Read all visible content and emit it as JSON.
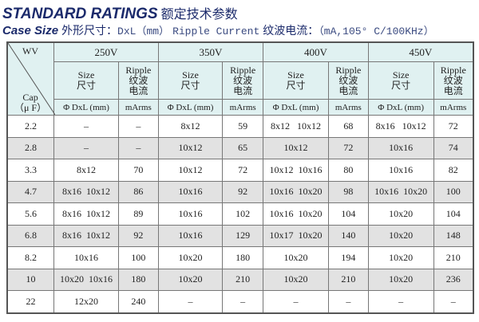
{
  "title": {
    "en": "STANDARD RATINGS",
    "cn": "额定技术参数"
  },
  "subtitle": {
    "case_en": "Case Size",
    "case_cn": "外形尺寸：",
    "case_unit": "DxL（mm）",
    "ripple_en": "Ripple Current",
    "ripple_cn": "纹波电流：",
    "ripple_unit": "（mA,105° C/100KHz）"
  },
  "table": {
    "wv_label": "WV",
    "cap_label": "Cap",
    "cap_unit": "（μ F）",
    "voltages": [
      "250V",
      "350V",
      "400V",
      "450V"
    ],
    "size_en": "Size",
    "size_cn": "尺寸",
    "ripple_en": "Ripple",
    "ripple_cn1": "纹波",
    "ripple_cn2": "电流",
    "size_unit": "Φ DxL (mm)",
    "ripple_unit": "mArms",
    "rows": [
      {
        "cap": "2.2",
        "cells": [
          "–",
          "–",
          "8x12",
          "59",
          "8x12   10x12",
          "68",
          "8x16   10x12",
          "72"
        ]
      },
      {
        "cap": "2.8",
        "cells": [
          "–",
          "–",
          "10x12",
          "65",
          "10x12",
          "72",
          "10x16",
          "74"
        ]
      },
      {
        "cap": "3.3",
        "cells": [
          "8x12",
          "70",
          "10x12",
          "72",
          "10x12  10x16",
          "80",
          "10x16",
          "82"
        ]
      },
      {
        "cap": "4.7",
        "cells": [
          "8x16  10x12",
          "86",
          "10x16",
          "92",
          "10x16  10x20",
          "98",
          "10x16  10x20",
          "100"
        ]
      },
      {
        "cap": "5.6",
        "cells": [
          "8x16  10x12",
          "89",
          "10x16",
          "102",
          "10x16  10x20",
          "104",
          "10x20",
          "104"
        ]
      },
      {
        "cap": "6.8",
        "cells": [
          "8x16  10x12",
          "92",
          "10x16",
          "129",
          "10x17  10x20",
          "140",
          "10x20",
          "148"
        ]
      },
      {
        "cap": "8.2",
        "cells": [
          "10x16",
          "100",
          "10x20",
          "180",
          "10x20",
          "194",
          "10x20",
          "210"
        ]
      },
      {
        "cap": "10",
        "cells": [
          "10x20  10x16",
          "180",
          "10x20",
          "210",
          "10x20",
          "210",
          "10x20",
          "236"
        ]
      },
      {
        "cap": "22",
        "cells": [
          "12x20",
          "240",
          "–",
          "–",
          "–",
          "–",
          "–",
          "–"
        ]
      }
    ]
  },
  "colors": {
    "title": "#1b2a6b",
    "header_bg": "#e0f1f1",
    "stripe": "#e2e2e2"
  }
}
